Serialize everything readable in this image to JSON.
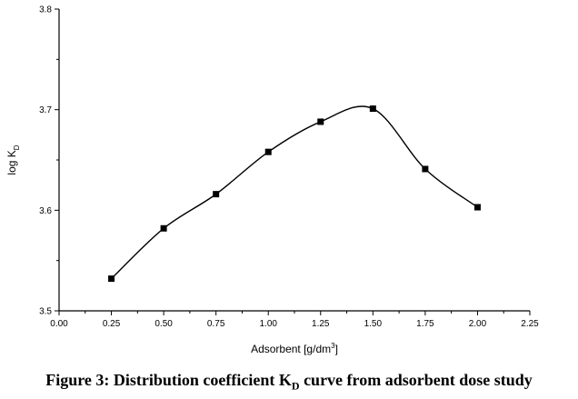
{
  "chart_data": {
    "type": "line",
    "title": "",
    "xlabel": "Adsorbent [g/dm",
    "xlabel_sup": "3",
    "xlabel_suffix": "]",
    "ylabel": "log K",
    "ylabel_sub": "D",
    "xlim": [
      0.0,
      2.25
    ],
    "ylim": [
      3.5,
      3.8
    ],
    "x_ticks": [
      "0.00",
      "0.25",
      "0.50",
      "0.75",
      "1.00",
      "1.25",
      "1.50",
      "1.75",
      "2.00",
      "2.25"
    ],
    "y_ticks": [
      "3.5",
      "3.6",
      "3.7",
      "3.8"
    ],
    "grid": false,
    "series": [
      {
        "marker": "square",
        "x": [
          0.25,
          0.5,
          0.75,
          1.0,
          1.25,
          1.5,
          1.75,
          2.0
        ],
        "y": [
          3.532,
          3.582,
          3.616,
          3.658,
          3.688,
          3.701,
          3.641,
          3.603
        ]
      }
    ]
  },
  "caption": {
    "prefix": "Figure 3: Distribution coefficient K",
    "sub": "D",
    "suffix": " curve from adsorbent dose study"
  }
}
